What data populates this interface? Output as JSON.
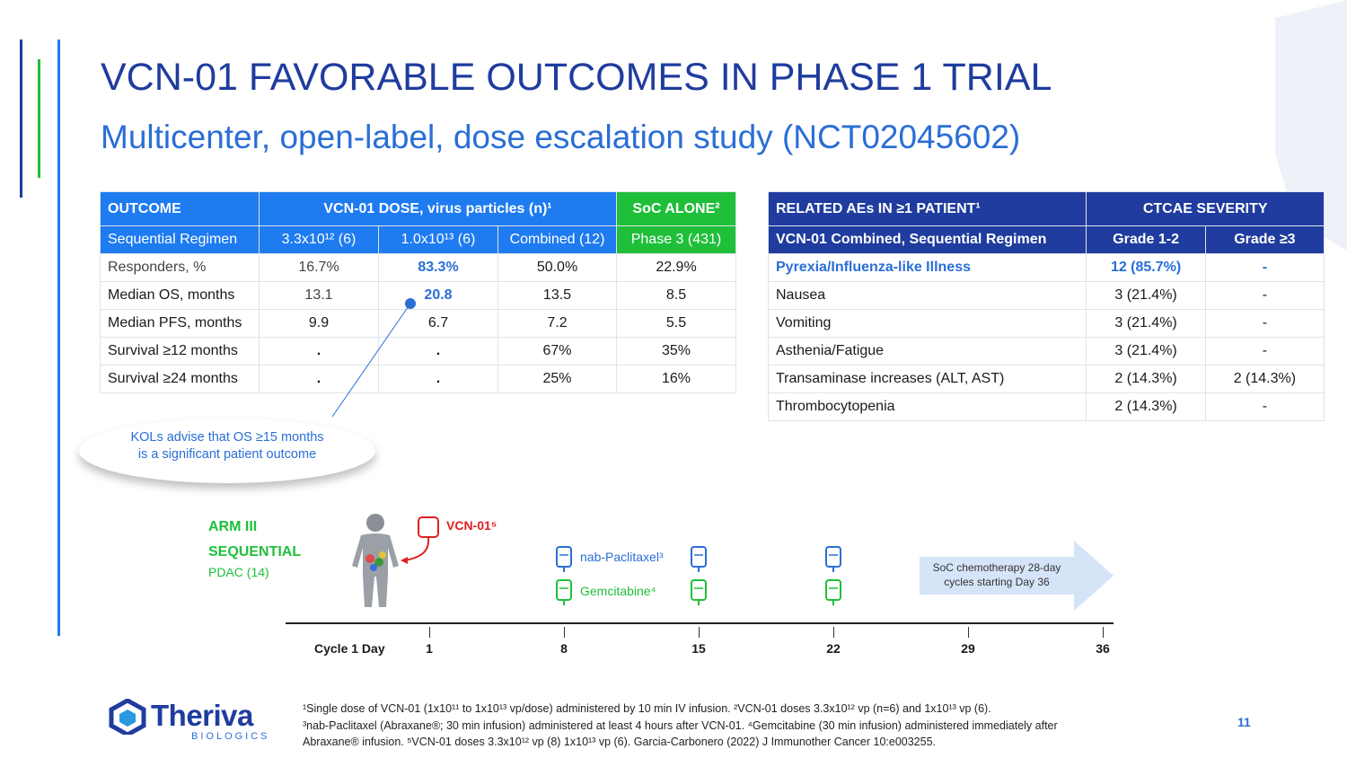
{
  "title": "VCN-01 FAVORABLE OUTCOMES IN PHASE 1 TRIAL",
  "subtitle": "Multicenter, open-label, dose escalation study (NCT02045602)",
  "outcomes_table": {
    "header": [
      "OUTCOME",
      "VCN-01 DOSE, virus particles (n)¹",
      "SoC ALONE²"
    ],
    "subheader": [
      "Sequential Regimen",
      "3.3x10¹²  (6)",
      "1.0x10¹³ (6)",
      "Combined (12)",
      "Phase 3 (431)"
    ],
    "rows": [
      [
        "Responders, %",
        "16.7%",
        "83.3%",
        "50.0%",
        "22.9%"
      ],
      [
        "Median OS, months",
        "13.1",
        "20.8",
        "13.5",
        "8.5"
      ],
      [
        "Median PFS, months",
        "9.9",
        "6.7",
        "7.2",
        "5.5"
      ],
      [
        "Survival ≥12 months",
        ".",
        ".",
        "67%",
        "35%"
      ],
      [
        "Survival ≥24 months",
        ".",
        ".",
        "25%",
        "16%"
      ]
    ]
  },
  "ae_table": {
    "header": [
      "RELATED AEs IN ≥1 PATIENT¹",
      "CTCAE SEVERITY"
    ],
    "subheader": [
      "VCN-01 Combined, Sequential Regimen",
      "Grade 1-2",
      "Grade ≥3"
    ],
    "rows": [
      [
        "Pyrexia/Influenza-like Illness",
        "12 (85.7%)",
        "-"
      ],
      [
        "Nausea",
        "3 (21.4%)",
        "-"
      ],
      [
        "Vomiting",
        "3 (21.4%)",
        "-"
      ],
      [
        "Asthenia/Fatigue",
        "3 (21.4%)",
        "-"
      ],
      [
        "Transaminase increases (ALT, AST)",
        "2 (14.3%)",
        "2 (14.3%)"
      ],
      [
        "Thrombocytopenia",
        "2 (14.3%)",
        "-"
      ]
    ]
  },
  "callout": {
    "line1": "KOLs advise that OS ≥15 months",
    "line2": "is a significant patient outcome"
  },
  "diagram": {
    "arm_line1": "ARM III",
    "arm_line2": "SEQUENTIAL",
    "pdac": "PDAC (14)",
    "vcn_label": "VCN-01⁵",
    "nab_label": "nab-Paclitaxel³",
    "gem_label": "Gemcitabine⁴",
    "soc_line1": "SoC chemotherapy 28-day",
    "soc_line2": "cycles starting Day 36",
    "cycle_label": "Cycle 1 Day",
    "days": [
      "1",
      "8",
      "15",
      "22",
      "29",
      "36"
    ]
  },
  "footnotes": {
    "line1": "¹Single dose of VCN-01 (1x10¹¹ to 1x10¹³ vp/dose) administered by 10 min IV infusion. ²VCN-01 doses 3.3x10¹² vp (n=6) and 1x10¹³ vp (6).",
    "line2": "³nab-Paclitaxel (Abraxane®; 30 min infusion) administered at least 4 hours after VCN-01. ⁴Gemcitabine (30 min infusion) administered immediately after",
    "line3": "Abraxane® infusion. ⁵VCN-01 doses 3.3x10¹² vp (8) 1x10¹³ vp (6). Garcia-Carbonero (2022) J Immunother Cancer 10:e003255."
  },
  "page_number": "11",
  "logo": {
    "name": "Theriva",
    "tagline": "BIOLOGICS"
  },
  "colors": {
    "navy": "#1f3c9e",
    "blue": "#1e7bf0",
    "green": "#1fbf3a"
  }
}
